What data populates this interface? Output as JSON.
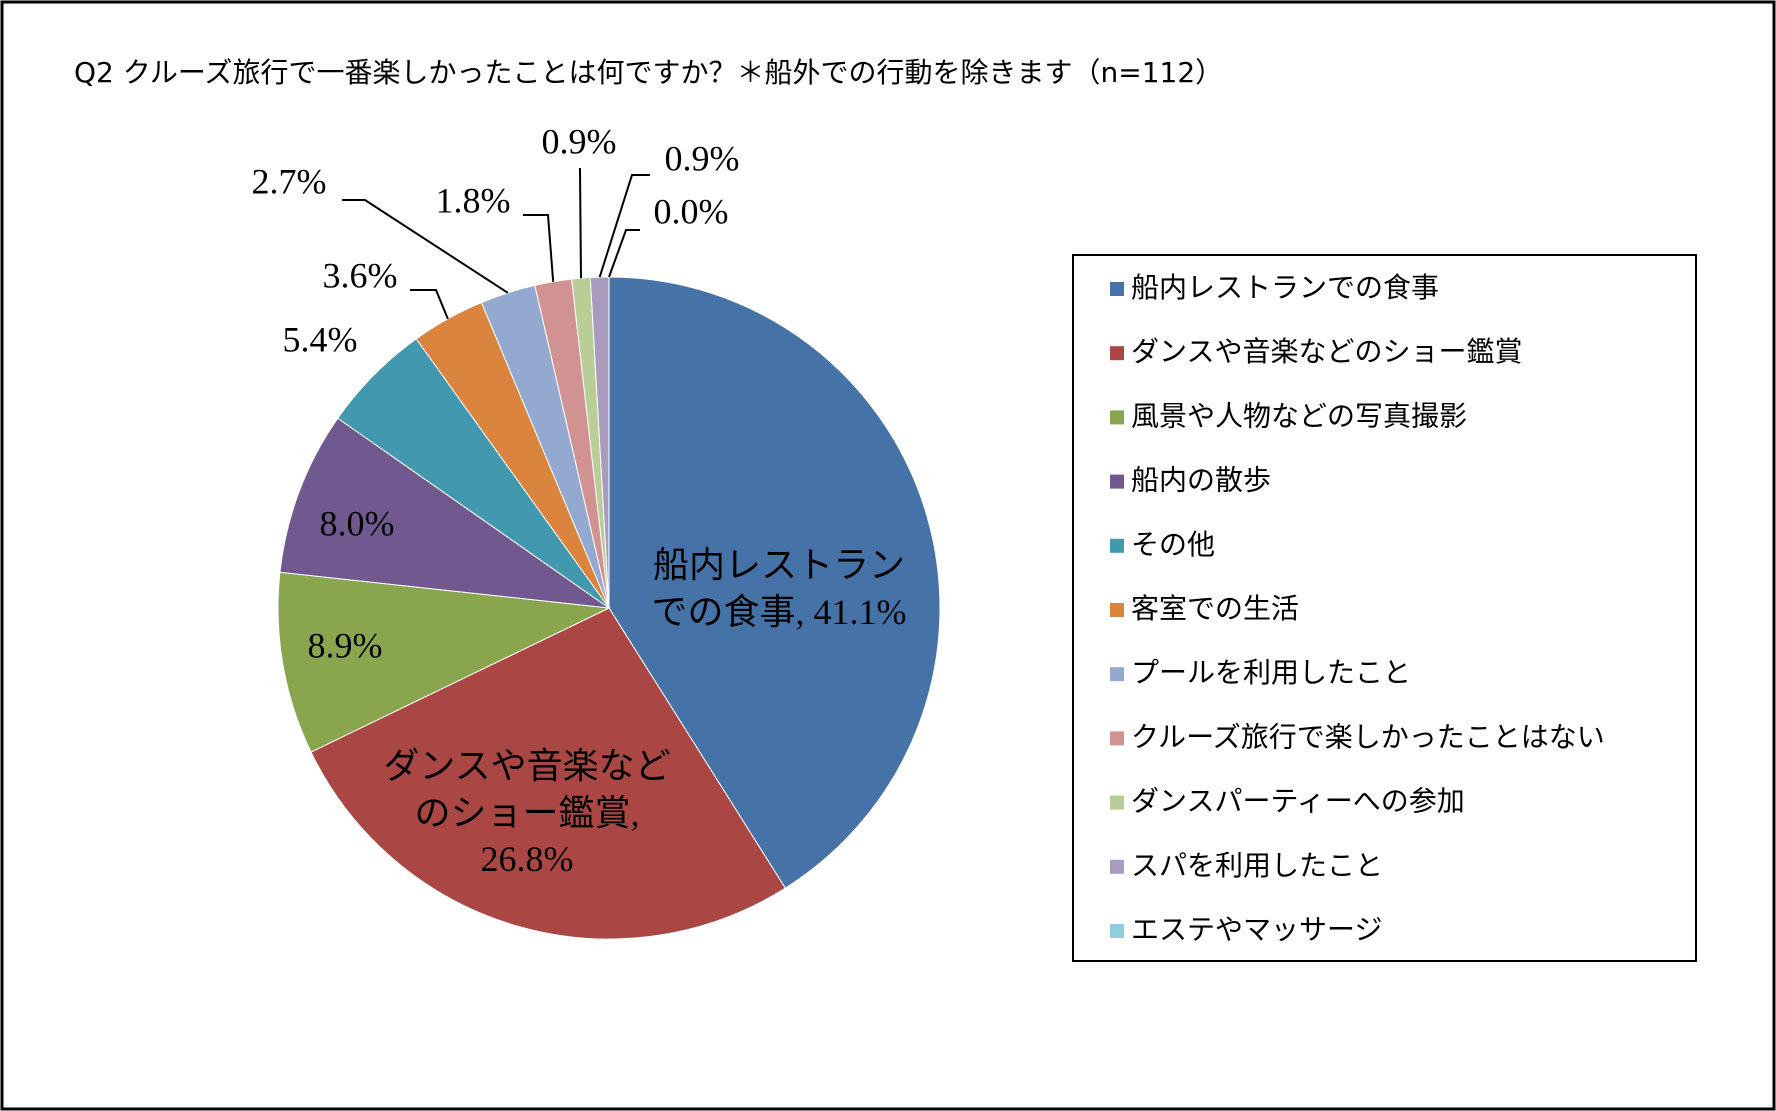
{
  "chart_data": {
    "type": "pie",
    "title": "Q2 クルーズ旅行で一番楽しかったことは何ですか？＊船外での行動を除きます（n=112）",
    "categories": [
      "船内レストランでの食事",
      "ダンスや音楽などのショー鑑賞",
      "風景や人物などの写真撮影",
      "船内の散歩",
      "その他",
      "客室での生活",
      "プールを利用したこと",
      "クルーズ旅行で楽しかったことはない",
      "ダンスパーティーへの参加",
      "スパを利用したこと",
      "エステやマッサージ"
    ],
    "values": [
      41.1,
      26.8,
      8.9,
      8.0,
      5.4,
      3.6,
      2.7,
      1.8,
      0.9,
      0.9,
      0.0
    ],
    "value_labels": [
      "船内レストランでの食事, 41.1%",
      "ダンスや音楽などのショー鑑賞, 26.8%",
      "8.9%",
      "8.0%",
      "5.4%",
      "3.6%",
      "2.7%",
      "1.8%",
      "0.9%",
      "0.9%",
      "0.0%"
    ],
    "colors": [
      "#4572a7",
      "#aa4643",
      "#89a54e",
      "#71588f",
      "#4198af",
      "#db843d",
      "#93a9cf",
      "#d19392",
      "#b9cd96",
      "#a99bbd",
      "#92cddc"
    ],
    "legend": "right"
  }
}
